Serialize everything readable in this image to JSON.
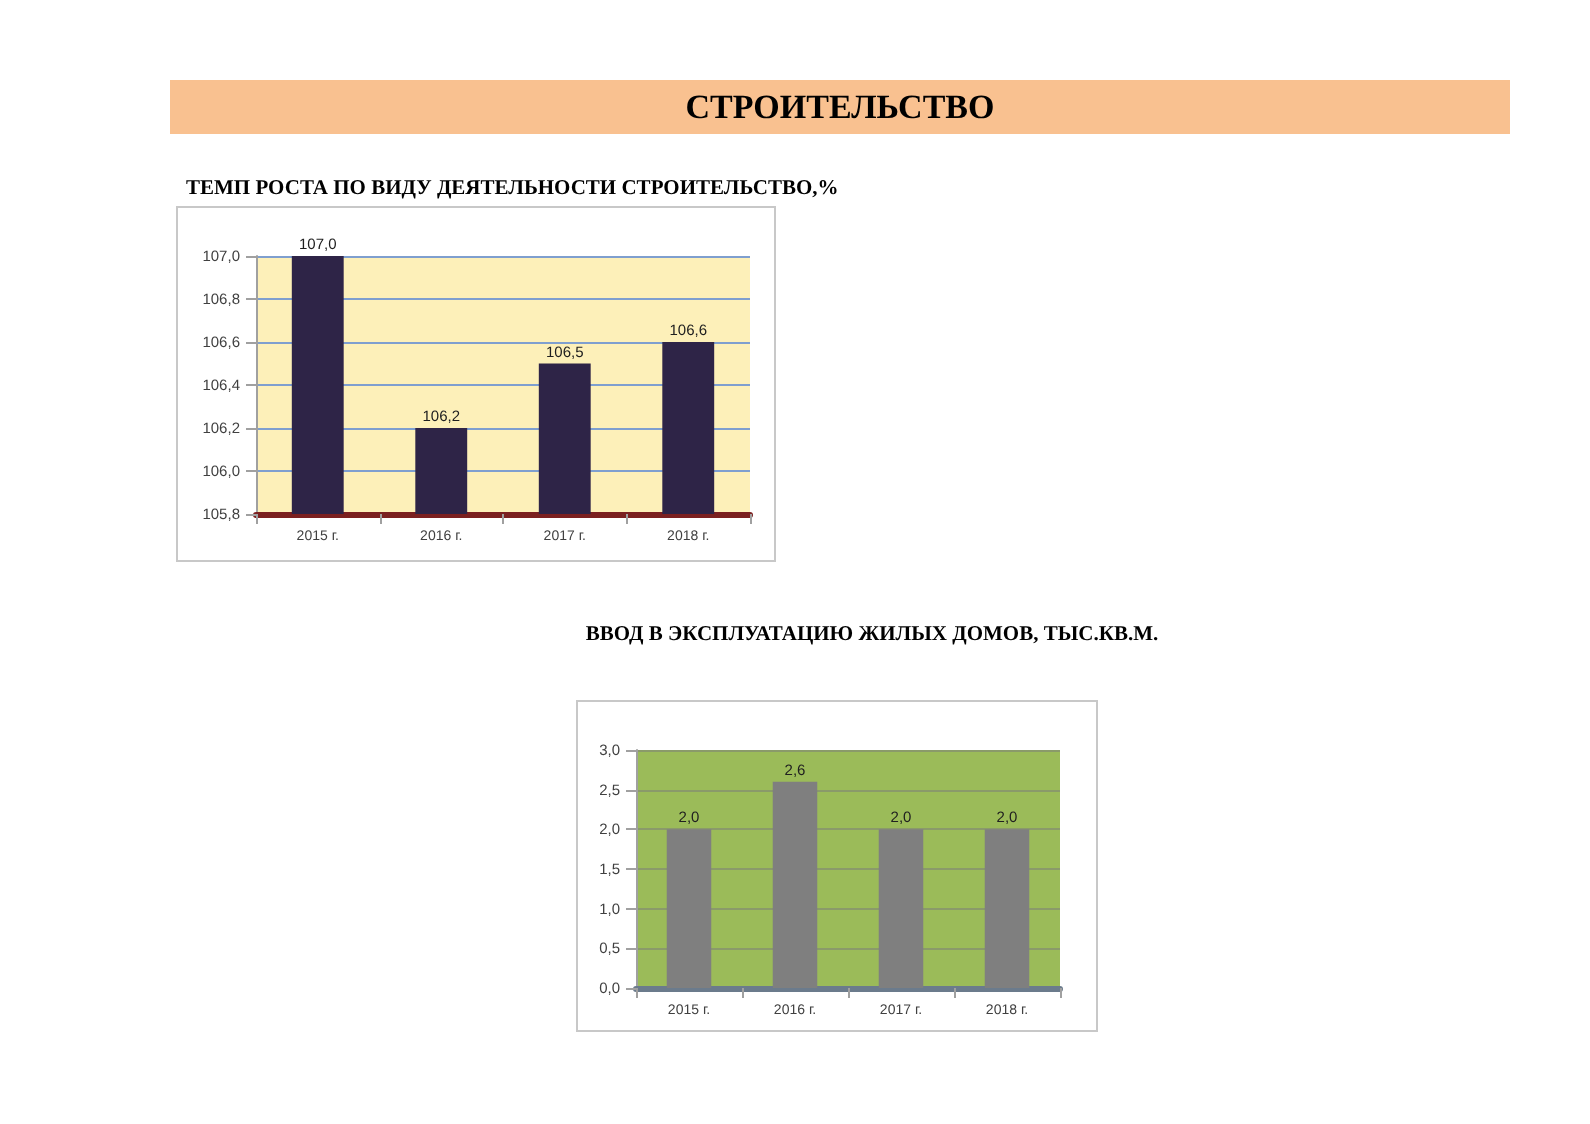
{
  "chart_data": [
    {
      "type": "other",
      "title": "СТРОИТЕЛЬСТВО"
    },
    {
      "type": "bar",
      "title": "ТЕМП РОСТА ПО ВИДУ ДЕЯТЕЛЬНОСТИ СТРОИТЕЛЬСТВО,%",
      "categories": [
        "2015 г.",
        "2016 г.",
        "2017 г.",
        "2018 г."
      ],
      "values": [
        107.0,
        106.2,
        106.5,
        106.6
      ],
      "value_labels": [
        "107,0",
        "106,2",
        "106,5",
        "106,6"
      ],
      "color": "#2e2447",
      "ylim": [
        105.8,
        107.0
      ],
      "yticks": [
        {
          "value": 105.8,
          "label": "105,8"
        },
        {
          "value": 106.0,
          "label": "106,0"
        },
        {
          "value": 106.2,
          "label": "106,2"
        },
        {
          "value": 106.4,
          "label": "106,4"
        },
        {
          "value": 106.6,
          "label": "106,6"
        },
        {
          "value": 106.8,
          "label": "106,8"
        },
        {
          "value": 107.0,
          "label": "107,0"
        }
      ],
      "grid": "y"
    },
    {
      "type": "bar",
      "title": "ВВОД В ЭКСПЛУАТАЦИЮ ЖИЛЫХ ДОМОВ, ТЫС.КВ.М.",
      "categories": [
        "2015 г.",
        "2016 г.",
        "2017 г.",
        "2018 г."
      ],
      "values": [
        2.0,
        2.6,
        2.0,
        2.0
      ],
      "value_labels": [
        "2,0",
        "2,6",
        "2,0",
        "2,0"
      ],
      "color": "#7f7f7f",
      "ylim": [
        0,
        3.0
      ],
      "yticks": [
        {
          "value": 0,
          "label": "0,0"
        },
        {
          "value": 0.5,
          "label": "0,5"
        },
        {
          "value": 1.0,
          "label": "1,0"
        },
        {
          "value": 1.5,
          "label": "1,5"
        },
        {
          "value": 2.0,
          "label": "2,0"
        },
        {
          "value": 2.5,
          "label": "2,5"
        },
        {
          "value": 3.0,
          "label": "3,0"
        }
      ],
      "grid": "y"
    }
  ]
}
